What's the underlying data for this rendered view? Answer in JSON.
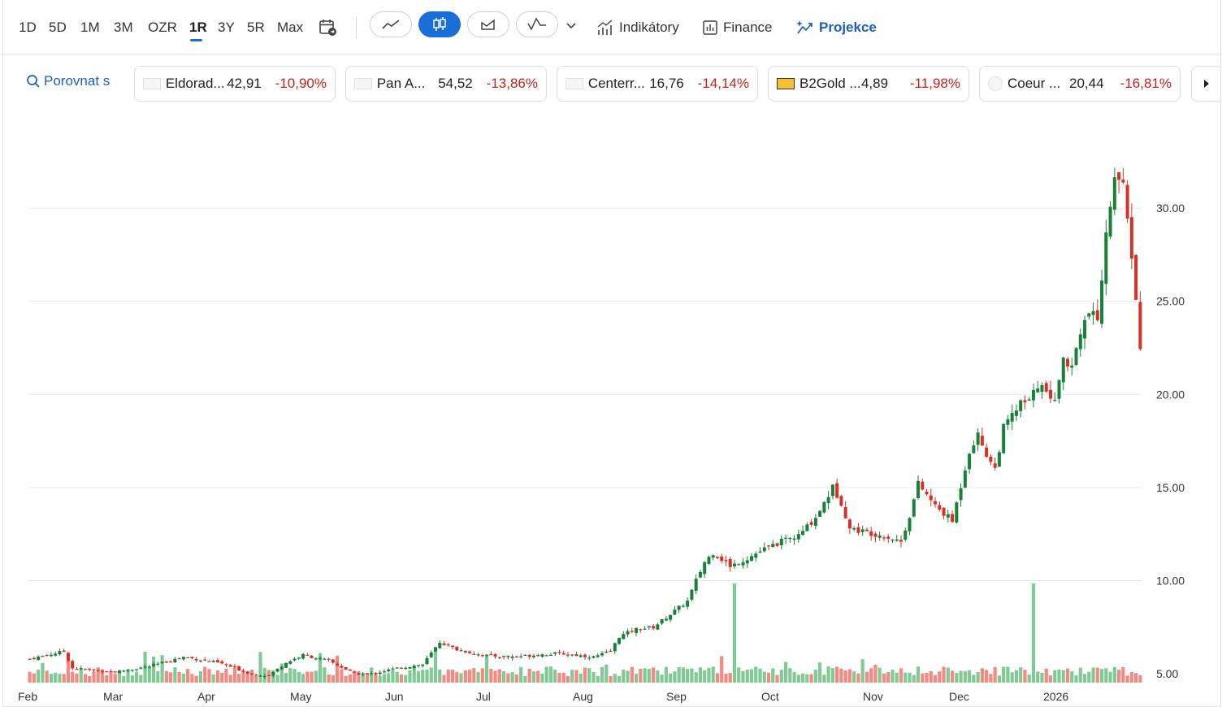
{
  "toolbar": {
    "ranges": [
      "1D",
      "5D",
      "1M",
      "3M",
      "OZR",
      "1R",
      "3Y",
      "5R",
      "Max"
    ],
    "active_range": "1R",
    "chart_types": [
      "line-chart-icon",
      "candlestick-chart-icon",
      "area-chart-icon",
      "indicator-chart-icon"
    ],
    "active_chart_type": "candlestick-chart-icon",
    "indicators_label": "Indikátory",
    "finance_label": "Finance",
    "projections_label": "Projekce",
    "accent_color": "#1a6ed8"
  },
  "compare": {
    "button_label": "Porovnat s",
    "chips": [
      {
        "name": "Eldorad...",
        "price": "42,91",
        "change": "-10,90%"
      },
      {
        "name": "Pan A...",
        "price": "54,52",
        "change": "-13,86%"
      },
      {
        "name": "Centerr...",
        "price": "16,76",
        "change": "-14,14%"
      },
      {
        "name": "B2Gold ...",
        "price": "4,89",
        "change": "-11,98%"
      },
      {
        "name": "Coeur ...",
        "price": "20,44",
        "change": "-16,81%"
      }
    ]
  },
  "chart_data": {
    "type": "candlestick",
    "colors": {
      "up": "#188038",
      "down": "#d93025",
      "up_volume": "#81c995",
      "down_volume": "#f28b82"
    },
    "y_axis": {
      "ticks": [
        "30.00",
        "25.00",
        "20.00",
        "15.00",
        "10.00",
        "5.00"
      ],
      "tick_values": [
        30,
        25,
        20,
        15,
        10,
        5
      ],
      "range": [
        5,
        35
      ]
    },
    "x_axis": {
      "labels": [
        "Feb",
        "Mar",
        "Apr",
        "May",
        "Jun",
        "Jul",
        "Aug",
        "Sep",
        "Oct",
        "Nov",
        "Dec",
        "2026"
      ]
    },
    "grid": true,
    "close_path": [
      [
        0,
        5.8
      ],
      [
        8,
        6.2
      ],
      [
        10,
        5.3
      ],
      [
        20,
        5.1
      ],
      [
        28,
        5.4
      ],
      [
        36,
        5.9
      ],
      [
        44,
        5.6
      ],
      [
        52,
        5.0
      ],
      [
        56,
        4.9
      ],
      [
        60,
        5.6
      ],
      [
        64,
        6.0
      ],
      [
        70,
        5.7
      ],
      [
        76,
        5.0
      ],
      [
        80,
        5.0
      ],
      [
        86,
        5.3
      ],
      [
        92,
        5.5
      ],
      [
        96,
        6.7
      ],
      [
        100,
        6.3
      ],
      [
        106,
        6.0
      ],
      [
        112,
        5.9
      ],
      [
        118,
        6.0
      ],
      [
        124,
        6.1
      ],
      [
        128,
        6.0
      ],
      [
        132,
        5.9
      ],
      [
        136,
        6.2
      ],
      [
        138,
        7.0
      ],
      [
        142,
        7.4
      ],
      [
        146,
        7.5
      ],
      [
        150,
        8.2
      ],
      [
        154,
        8.9
      ],
      [
        156,
        10.0
      ],
      [
        158,
        11.0
      ],
      [
        160,
        11.5
      ],
      [
        164,
        10.8
      ],
      [
        168,
        11.2
      ],
      [
        172,
        11.7
      ],
      [
        176,
        12.1
      ],
      [
        180,
        12.4
      ],
      [
        184,
        13.4
      ],
      [
        188,
        15.0
      ],
      [
        190,
        14.2
      ],
      [
        192,
        12.8
      ],
      [
        196,
        12.6
      ],
      [
        200,
        12.4
      ],
      [
        204,
        12.1
      ],
      [
        206,
        13.5
      ],
      [
        208,
        15.2
      ],
      [
        212,
        14.0
      ],
      [
        216,
        13.2
      ],
      [
        220,
        17.0
      ],
      [
        222,
        17.8
      ],
      [
        224,
        16.8
      ],
      [
        226,
        16.0
      ],
      [
        228,
        18.2
      ],
      [
        232,
        19.5
      ],
      [
        234,
        19.6
      ],
      [
        236,
        20.5
      ],
      [
        238,
        20.2
      ],
      [
        240,
        19.5
      ],
      [
        242,
        22.0
      ],
      [
        244,
        21.5
      ],
      [
        246,
        23.5
      ],
      [
        248,
        24.4
      ],
      [
        250,
        24.0
      ],
      [
        252,
        28.5
      ],
      [
        254,
        32.0
      ],
      [
        256,
        31.0
      ],
      [
        258,
        27.5
      ],
      [
        259,
        25.0
      ],
      [
        260,
        22.5
      ]
    ],
    "volume": {
      "baseline": "low",
      "spikes": [
        {
          "position": "mid-Sep",
          "relative_height": "tallest"
        },
        {
          "position": "mid-Dec",
          "relative_height": "tallest"
        }
      ]
    }
  }
}
